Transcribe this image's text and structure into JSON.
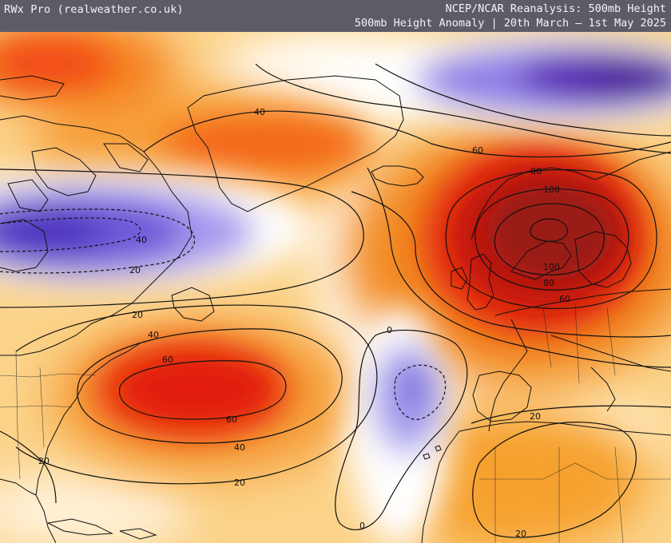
{
  "header": {
    "brand": "RWx Pro (realweather.co.uk)",
    "title_line1": "NCEP/NCAR Reanalysis: 500mb Height",
    "title_line2": "500mb Height Anomaly | 20th March — 1st May 2025",
    "background_color": "#5d5c66",
    "text_color": "#f4f4f4"
  },
  "map": {
    "projection": "North Atlantic",
    "palette": {
      "strong_positive": "#9d1a14",
      "positive": "#e3220a",
      "moderate_positive": "#f37a12",
      "weak_positive": "#f8b544",
      "neutral": "#ffffff",
      "negative": "#7a6be0",
      "strong_negative": "#4c1fa4"
    },
    "contour_labels": [
      {
        "id": "l40-greenland",
        "text": "40"
      },
      {
        "id": "l60-scand-top",
        "text": "60"
      },
      {
        "id": "l80-scand",
        "text": "80"
      },
      {
        "id": "l100-scand-top",
        "text": "100"
      },
      {
        "id": "l100-scand-bot",
        "text": "100"
      },
      {
        "id": "l80-scand-bot",
        "text": "80"
      },
      {
        "id": "l60-scand-bot",
        "text": "60"
      },
      {
        "id": "lneg40-canada",
        "text": "40"
      },
      {
        "id": "lneg20-canada",
        "text": "20"
      },
      {
        "id": "l20-ne",
        "text": "20"
      },
      {
        "id": "l40-atl",
        "text": "40"
      },
      {
        "id": "l60-atl-top",
        "text": "60"
      },
      {
        "id": "l60-atl-bot",
        "text": "60"
      },
      {
        "id": "l40-atl-bot",
        "text": "40"
      },
      {
        "id": "l20-atl-bot",
        "text": "20"
      },
      {
        "id": "l20-florida",
        "text": "20"
      },
      {
        "id": "l0-top",
        "text": "0"
      },
      {
        "id": "l0-bot",
        "text": "0"
      },
      {
        "id": "l20-sahara",
        "text": "20"
      },
      {
        "id": "l20-sahara-bot",
        "text": "20"
      }
    ]
  }
}
